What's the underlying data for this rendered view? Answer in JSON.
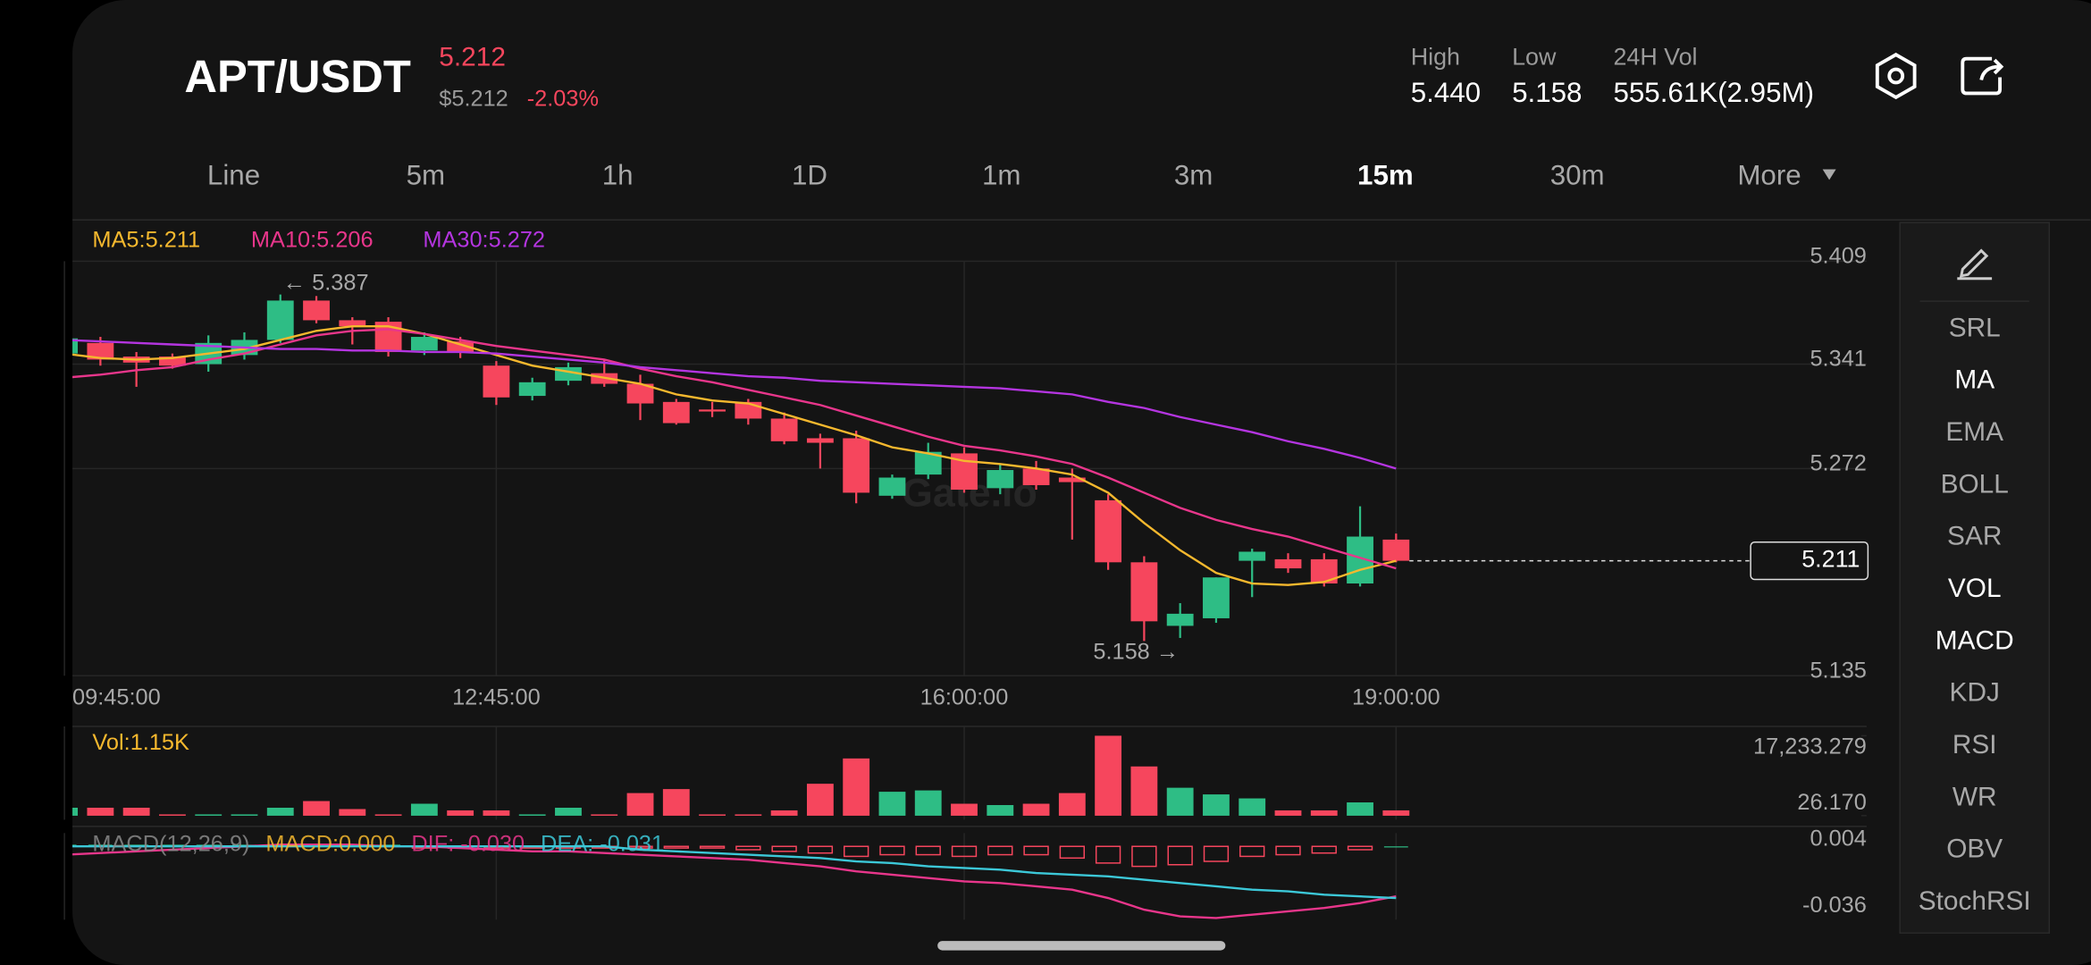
{
  "header": {
    "symbol": "APT/USDT",
    "price": "5.212",
    "usd_price": "$5.212",
    "change": "-2.03%",
    "stats": [
      {
        "label": "High",
        "value": "5.440"
      },
      {
        "label": "Low",
        "value": "5.158"
      },
      {
        "label": "24H Vol",
        "value": "555.61K(2.95M)"
      }
    ]
  },
  "tabs": [
    {
      "label": "Line",
      "active": false
    },
    {
      "label": "5m",
      "active": false
    },
    {
      "label": "1h",
      "active": false
    },
    {
      "label": "1D",
      "active": false
    },
    {
      "label": "1m",
      "active": false
    },
    {
      "label": "3m",
      "active": false
    },
    {
      "label": "15m",
      "active": true
    },
    {
      "label": "30m",
      "active": false
    },
    {
      "label": "More",
      "active": false
    }
  ],
  "indicators": [
    {
      "label": "SRL",
      "active": false
    },
    {
      "label": "MA",
      "active": true
    },
    {
      "label": "EMA",
      "active": false
    },
    {
      "label": "BOLL",
      "active": false
    },
    {
      "label": "SAR",
      "active": false
    },
    {
      "label": "VOL",
      "active": true
    },
    {
      "label": "MACD",
      "active": true
    },
    {
      "label": "KDJ",
      "active": false
    },
    {
      "label": "RSI",
      "active": false
    },
    {
      "label": "WR",
      "active": false
    },
    {
      "label": "OBV",
      "active": false
    },
    {
      "label": "StochRSI",
      "active": false
    }
  ],
  "chart_data": {
    "type": "candlestick",
    "watermark": "Gate.io",
    "up_color": "#2ebd85",
    "down_color": "#f6465d",
    "grid": true,
    "categories": [
      "09:45:00",
      null,
      null,
      null,
      null,
      null,
      null,
      null,
      null,
      null,
      null,
      null,
      "12:45:00",
      null,
      null,
      null,
      null,
      null,
      null,
      null,
      null,
      null,
      null,
      null,
      null,
      "16:00:00",
      null,
      null,
      null,
      null,
      null,
      null,
      null,
      null,
      null,
      null,
      null,
      "19:00:00"
    ],
    "open": [
      5.348,
      5.355,
      5.346,
      5.346,
      5.341,
      5.347,
      5.357,
      5.383,
      5.37,
      5.369,
      5.35,
      5.356,
      5.34,
      5.32,
      5.33,
      5.335,
      5.328,
      5.316,
      5.311,
      5.316,
      5.305,
      5.292,
      5.292,
      5.254,
      5.268,
      5.282,
      5.259,
      5.272,
      5.266,
      5.251,
      5.21,
      5.168,
      5.173,
      5.211,
      5.212,
      5.212,
      5.196,
      5.225
    ],
    "high": [
      5.362,
      5.359,
      5.349,
      5.348,
      5.36,
      5.362,
      5.387,
      5.386,
      5.372,
      5.372,
      5.362,
      5.359,
      5.343,
      5.332,
      5.342,
      5.344,
      5.334,
      5.318,
      5.316,
      5.318,
      5.309,
      5.295,
      5.297,
      5.268,
      5.289,
      5.286,
      5.275,
      5.277,
      5.272,
      5.255,
      5.214,
      5.183,
      5.2,
      5.219,
      5.216,
      5.216,
      5.247,
      5.229
    ],
    "low": [
      5.345,
      5.34,
      5.326,
      5.338,
      5.336,
      5.344,
      5.355,
      5.368,
      5.354,
      5.346,
      5.347,
      5.345,
      5.314,
      5.317,
      5.327,
      5.326,
      5.304,
      5.301,
      5.306,
      5.301,
      5.288,
      5.272,
      5.249,
      5.252,
      5.265,
      5.256,
      5.255,
      5.258,
      5.225,
      5.205,
      5.158,
      5.16,
      5.17,
      5.187,
      5.203,
      5.194,
      5.194,
      5.21
    ],
    "close": [
      5.358,
      5.344,
      5.342,
      5.34,
      5.355,
      5.357,
      5.383,
      5.37,
      5.366,
      5.349,
      5.359,
      5.349,
      5.319,
      5.329,
      5.339,
      5.328,
      5.315,
      5.302,
      5.31,
      5.305,
      5.29,
      5.289,
      5.256,
      5.266,
      5.283,
      5.258,
      5.271,
      5.261,
      5.263,
      5.21,
      5.171,
      5.176,
      5.2,
      5.217,
      5.206,
      5.196,
      5.227,
      5.211
    ],
    "ylim": [
      5.135,
      5.409
    ],
    "yticks": [
      5.409,
      5.341,
      5.272,
      5.135
    ],
    "last_price": 5.211,
    "high_label": "← 5.387",
    "low_label": "5.158 →",
    "overlays": [
      {
        "name": "MA5:5.211",
        "color": "#f5b82e",
        "values": [
          5.348,
          5.345,
          5.344,
          5.345,
          5.348,
          5.351,
          5.357,
          5.363,
          5.366,
          5.366,
          5.361,
          5.354,
          5.347,
          5.34,
          5.336,
          5.332,
          5.328,
          5.321,
          5.317,
          5.315,
          5.308,
          5.301,
          5.294,
          5.286,
          5.282,
          5.277,
          5.275,
          5.272,
          5.268,
          5.256,
          5.236,
          5.218,
          5.203,
          5.196,
          5.195,
          5.197,
          5.205,
          5.211
        ]
      },
      {
        "name": "MA10:5.206",
        "color": "#e8368b",
        "values": [
          5.332,
          5.334,
          5.337,
          5.339,
          5.344,
          5.348,
          5.354,
          5.36,
          5.363,
          5.364,
          5.361,
          5.357,
          5.353,
          5.35,
          5.347,
          5.344,
          5.338,
          5.333,
          5.329,
          5.324,
          5.319,
          5.314,
          5.307,
          5.3,
          5.293,
          5.287,
          5.284,
          5.28,
          5.275,
          5.266,
          5.256,
          5.246,
          5.238,
          5.232,
          5.227,
          5.22,
          5.213,
          5.206
        ]
      },
      {
        "name": "MA30:5.272",
        "color": "#b435e0",
        "values": [
          5.357,
          5.356,
          5.355,
          5.354,
          5.353,
          5.352,
          5.351,
          5.351,
          5.35,
          5.35,
          5.349,
          5.349,
          5.348,
          5.346,
          5.344,
          5.342,
          5.339,
          5.337,
          5.335,
          5.333,
          5.332,
          5.33,
          5.329,
          5.328,
          5.327,
          5.326,
          5.325,
          5.323,
          5.321,
          5.316,
          5.312,
          5.306,
          5.301,
          5.296,
          5.29,
          5.285,
          5.279,
          5.272
        ]
      }
    ],
    "volume": {
      "label": "Vol:1.15K",
      "color": "#f5b82e",
      "values": [
        1722,
        1722,
        1722,
        287,
        287,
        287,
        1722,
        3157,
        1435,
        287,
        2583,
        1148,
        1148,
        287,
        1722,
        287,
        4879,
        5740,
        287,
        287,
        1148,
        6888,
        12341,
        5166,
        5453,
        2583,
        2296,
        2583,
        4879,
        17233.279,
        10619,
        6027,
        4592,
        3731,
        1148,
        1148,
        2870,
        1150
      ],
      "ylim": [
        0,
        17233.279
      ],
      "yticks": [
        {
          "value": 17233.279,
          "label": "17,233.279"
        },
        {
          "value": 26.17,
          "label": "26.170"
        }
      ]
    },
    "macd": {
      "labels": [
        {
          "text": "MACD(12,26,9)",
          "color": "#8a8a8a"
        },
        {
          "text": "MACD:0.000",
          "color": "#f5b82e"
        },
        {
          "text": "DIF: -0.030",
          "color": "#e8368b"
        },
        {
          "text": "DEA: -0.031",
          "color": "#3cc8d8"
        }
      ],
      "hist": [
        0.001,
        0.001,
        0.001,
        0.001,
        0.001,
        0.001,
        0.001,
        0.001,
        0.001,
        0.001,
        -0.001,
        -0.001,
        -0.001,
        -0.001,
        -0.001,
        -0.001,
        -0.001,
        -0.001,
        -0.001,
        -0.002,
        -0.003,
        -0.004,
        -0.006,
        -0.005,
        -0.005,
        -0.006,
        -0.005,
        -0.005,
        -0.007,
        -0.01,
        -0.012,
        -0.011,
        -0.009,
        -0.006,
        -0.005,
        -0.004,
        -0.002,
        0
      ],
      "dif": {
        "color": "#e8368b",
        "values": [
          -0.005,
          -0.004,
          -0.003,
          -0.002,
          -0.001,
          0,
          0.001,
          0.001,
          0.001,
          0,
          0,
          -0.001,
          -0.002,
          -0.003,
          -0.003,
          -0.004,
          -0.005,
          -0.006,
          -0.007,
          -0.008,
          -0.01,
          -0.012,
          -0.015,
          -0.017,
          -0.019,
          -0.021,
          -0.022,
          -0.024,
          -0.026,
          -0.031,
          -0.038,
          -0.042,
          -0.043,
          -0.041,
          -0.039,
          -0.037,
          -0.034,
          -0.03
        ]
      },
      "dea": {
        "color": "#3cc8d8",
        "values": [
          0,
          0,
          0,
          0,
          0,
          0,
          0,
          0,
          0,
          0,
          0,
          0,
          0,
          0,
          0,
          0,
          -0.002,
          -0.003,
          -0.004,
          -0.005,
          -0.006,
          -0.007,
          -0.009,
          -0.01,
          -0.012,
          -0.013,
          -0.014,
          -0.016,
          -0.017,
          -0.018,
          -0.02,
          -0.022,
          -0.024,
          -0.026,
          -0.027,
          -0.029,
          -0.03,
          -0.031
        ]
      },
      "ylim": [
        -0.036,
        0.004
      ],
      "yticks": [
        0.004,
        -0.036
      ]
    }
  }
}
